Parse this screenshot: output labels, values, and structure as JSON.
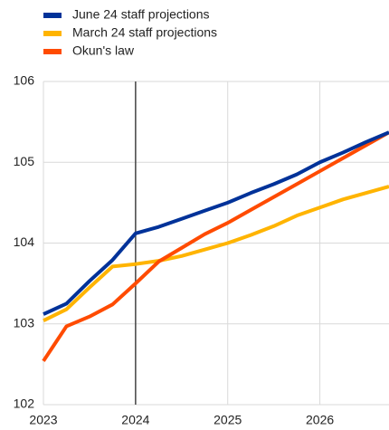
{
  "chart_data": {
    "type": "line",
    "x": [
      2023,
      2023.25,
      2023.5,
      2023.75,
      2024,
      2024.25,
      2024.5,
      2024.75,
      2025,
      2025.25,
      2025.5,
      2025.75,
      2026,
      2026.25,
      2026.5,
      2026.75
    ],
    "series": [
      {
        "name": "June 24 staff projections",
        "color": "#003299",
        "values": [
          103.12,
          103.25,
          103.53,
          103.79,
          104.12,
          104.2,
          104.3,
          104.4,
          104.5,
          104.62,
          104.73,
          104.85,
          105.0,
          105.12,
          105.25,
          105.37
        ]
      },
      {
        "name": "March 24 staff projections",
        "color": "#ffb400",
        "values": [
          103.04,
          103.18,
          103.45,
          103.71,
          103.74,
          103.78,
          103.84,
          103.92,
          104.0,
          104.1,
          104.21,
          104.34,
          104.44,
          104.54,
          104.62,
          104.7
        ]
      },
      {
        "name": "Okun's law",
        "color": "#ff4b00",
        "values": [
          102.54,
          102.97,
          103.09,
          103.24,
          103.5,
          103.77,
          103.94,
          104.11,
          104.25,
          104.41,
          104.57,
          104.73,
          104.89,
          105.05,
          105.21,
          105.37
        ]
      }
    ],
    "xlim": [
      2023,
      2026.75
    ],
    "xticks": [
      2023,
      2024,
      2025,
      2026
    ],
    "ylim": [
      102,
      106
    ],
    "yticks": [
      102,
      103,
      104,
      105,
      106
    ],
    "vline": 2024,
    "grid": true,
    "legend": "top-left"
  }
}
